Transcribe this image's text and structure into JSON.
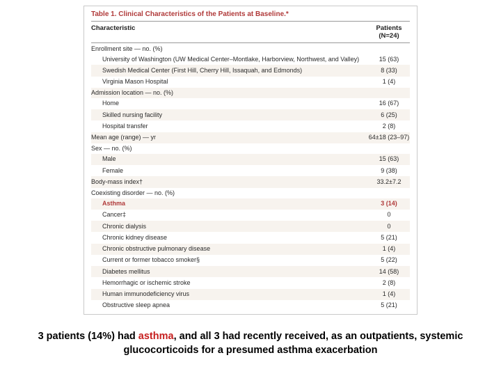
{
  "table": {
    "title": "Table 1. Clinical Characteristics of the Patients at Baseline.*",
    "col_left": "Characteristic",
    "col_right_l1": "Patients",
    "col_right_l2": "(N=24)",
    "colors": {
      "title": "#b03a3a",
      "highlight": "#b03a3a",
      "border": "#c9c9c9",
      "alt_bg": "#f7f3ee",
      "text": "#2a2a2a"
    },
    "sections": [
      {
        "header": "Enrollment site — no. (%)",
        "rows": [
          {
            "label": "University of Washington (UW Medical Center–Montlake, Harborview, Northwest, and Valley)",
            "value": "15 (63)"
          },
          {
            "label": "Swedish Medical Center (First Hill, Cherry Hill, Issaquah, and Edmonds)",
            "value": "8 (33)",
            "alt": true
          },
          {
            "label": "Virginia Mason Hospital",
            "value": "1 (4)"
          }
        ]
      },
      {
        "header": "Admission location — no. (%)",
        "alt": true,
        "rows": [
          {
            "label": "Home",
            "value": "16 (67)"
          },
          {
            "label": "Skilled nursing facility",
            "value": "6 (25)",
            "alt": true
          },
          {
            "label": "Hospital transfer",
            "value": "2 (8)"
          }
        ]
      },
      {
        "single": true,
        "label": "Mean age (range) — yr",
        "value": "64±18 (23–97)",
        "alt": true
      },
      {
        "header": "Sex — no. (%)",
        "rows": [
          {
            "label": "Male",
            "value": "15 (63)",
            "alt": true
          },
          {
            "label": "Female",
            "value": "9 (38)"
          }
        ]
      },
      {
        "single": true,
        "label": "Body-mass index†",
        "value": "33.2±7.2",
        "alt": true
      },
      {
        "header": "Coexisting disorder — no. (%)",
        "rows": [
          {
            "label": "Asthma",
            "value": "3 (14)",
            "alt": true,
            "highlight": true
          },
          {
            "label": "Cancer‡",
            "value": "0"
          },
          {
            "label": "Chronic dialysis",
            "value": "0",
            "alt": true
          },
          {
            "label": "Chronic kidney disease",
            "value": "5 (21)"
          },
          {
            "label": "Chronic obstructive pulmonary disease",
            "value": "1 (4)",
            "alt": true
          },
          {
            "label": "Current or former tobacco smoker§",
            "value": "5 (22)"
          },
          {
            "label": "Diabetes mellitus",
            "value": "14 (58)",
            "alt": true
          },
          {
            "label": "Hemorrhagic or ischemic stroke",
            "value": "2 (8)"
          },
          {
            "label": "Human immunodeficiency virus",
            "value": "1 (4)",
            "alt": true
          },
          {
            "label": "Obstructive sleep apnea",
            "value": "5 (21)"
          }
        ]
      }
    ]
  },
  "caption": {
    "pre": "3 patients (14%) had ",
    "em": "asthma",
    "post": ", and all 3 had recently received, as an outpatients, systemic glucocorticoids for a presumed asthma exacerbation"
  }
}
